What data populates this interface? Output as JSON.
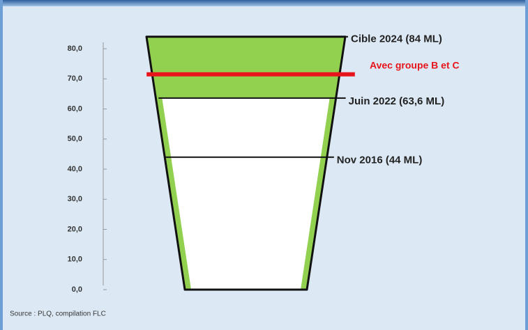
{
  "chart_data": {
    "type": "cup",
    "ylim": [
      0,
      84
    ],
    "yticks": [
      {
        "value": 0,
        "label": "0,0"
      },
      {
        "value": 10,
        "label": "10,0"
      },
      {
        "value": 20,
        "label": "20,0"
      },
      {
        "value": 30,
        "label": "30,0"
      },
      {
        "value": 40,
        "label": "40,0"
      },
      {
        "value": 50,
        "label": "50,0"
      },
      {
        "value": 60,
        "label": "60,0"
      },
      {
        "value": 70,
        "label": "70,0"
      },
      {
        "value": 80,
        "label": "80,0"
      }
    ],
    "color": "#92d050",
    "levels": [
      {
        "label": "Cible 2024 (84 ML)",
        "value": 84
      },
      {
        "label": "Juin 2022 (63,6 ML)",
        "value": 63.6
      },
      {
        "label": "Nov 2016 (44 ML)",
        "value": 44
      }
    ],
    "target": {
      "label": "Avec groupe B et C",
      "value": 71.5,
      "color": "#e8141b"
    },
    "source": "Source : PLQ, compilation FLC"
  }
}
